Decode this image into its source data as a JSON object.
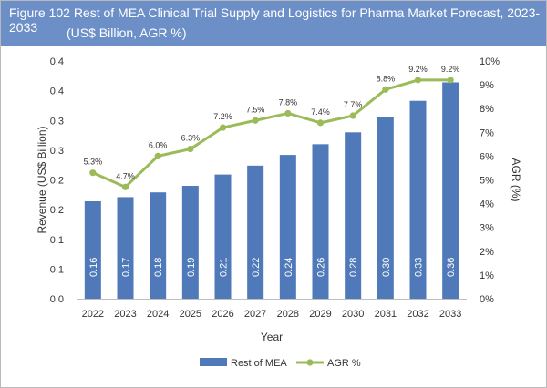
{
  "header": {
    "title_line1": "Figure 102 Rest of MEA Clinical Trial Supply and Logistics for Pharma Market Forecast, 2023-2033",
    "title_line2": "(US$ Billion, AGR %)"
  },
  "chart_data": {
    "type": "bar",
    "title": "Figure 102 Rest of MEA Clinical Trial Supply and Logistics for Pharma Market Forecast, 2023-2033",
    "subtitle": "(US$ Billion, AGR %)",
    "xlabel": "Year",
    "ylabel": "Revenue (US$ Billion)",
    "y2label": "AGR (%)",
    "categories": [
      "2022",
      "2023",
      "2024",
      "2025",
      "2026",
      "2027",
      "2028",
      "2029",
      "2030",
      "2031",
      "2032",
      "2033"
    ],
    "ylim": [
      0,
      0.4
    ],
    "y_ticks": [
      0.0,
      0.05,
      0.1,
      0.15,
      0.2,
      0.25,
      0.3,
      0.35,
      0.4
    ],
    "y_tick_labels": [
      "0.0",
      "0.1",
      "0.1",
      "0.2",
      "0.2",
      "0.3",
      "0.3",
      "0.4",
      "0.4"
    ],
    "y2lim": [
      0,
      10
    ],
    "y2_tick_labels": [
      "0%",
      "1%",
      "2%",
      "3%",
      "4%",
      "5%",
      "6%",
      "7%",
      "8%",
      "9%",
      "10%"
    ],
    "grid": false,
    "legend_position": "bottom",
    "series": [
      {
        "name": "Rest of MEA",
        "type": "bar",
        "axis": "left",
        "color": "#4f79b8",
        "values": [
          0.164,
          0.171,
          0.179,
          0.19,
          0.209,
          0.224,
          0.242,
          0.26,
          0.28,
          0.305,
          0.333,
          0.364
        ],
        "labels": [
          "0.16",
          "0.17",
          "0.18",
          "0.19",
          "0.21",
          "0.22",
          "0.24",
          "0.26",
          "0.28",
          "0.30",
          "0.33",
          "0.36"
        ]
      },
      {
        "name": "AGR %",
        "type": "line",
        "axis": "right",
        "color": "#9bbb59",
        "values": [
          5.3,
          4.7,
          6.0,
          6.3,
          7.2,
          7.5,
          7.8,
          7.4,
          7.7,
          8.8,
          9.2,
          9.2
        ],
        "labels": [
          "5.3%",
          "4.7%",
          "6.0%",
          "6.3%",
          "7.2%",
          "7.5%",
          "7.8%",
          "7.4%",
          "7.7%",
          "8.8%",
          "9.2%",
          "9.2%"
        ]
      }
    ]
  }
}
